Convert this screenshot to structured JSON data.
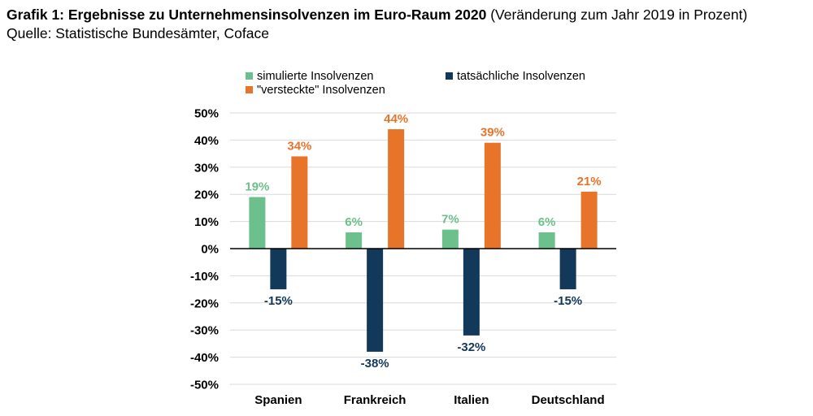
{
  "header": {
    "title": "Grafik 1: Ergebnisse zu Unternehmensinsolvenzen im Euro-Raum 2020",
    "title_suffix": "(Veränderung zum Jahr 2019 in Prozent)",
    "source": "Quelle: Statistische Bundesämter, Coface"
  },
  "chart_data": {
    "type": "bar",
    "categories": [
      "Spanien",
      "Frankreich",
      "Italien",
      "Deutschland"
    ],
    "series": [
      {
        "name": "simulierte Insolvenzen",
        "color": "#6cc08b",
        "values": [
          19,
          6,
          7,
          6
        ],
        "labels": [
          "19%",
          "6%",
          "7%",
          "6%"
        ]
      },
      {
        "name": "tatsächliche Insolvenzen",
        "color": "#12385a",
        "values": [
          -15,
          -38,
          -32,
          -15
        ],
        "labels": [
          "-15%",
          "-38%",
          "-32%",
          "-15%"
        ]
      },
      {
        "name": "\"versteckte\" Insolvenzen",
        "color": "#e8742a",
        "values": [
          34,
          44,
          39,
          21
        ],
        "labels": [
          "34%",
          "44%",
          "39%",
          "21%"
        ]
      }
    ],
    "y_ticks": [
      "50%",
      "40%",
      "30%",
      "20%",
      "10%",
      "0%",
      "-10%",
      "-20%",
      "-30%",
      "-40%",
      "-50%"
    ],
    "ylim": [
      -50,
      50
    ],
    "grid": true,
    "legend": "top",
    "label_colors": {
      "simulierte Insolvenzen": "#6cc08b",
      "tatsächliche Insolvenzen": "#12385a",
      "\"versteckte\" Insolvenzen": "#e8742a"
    }
  }
}
